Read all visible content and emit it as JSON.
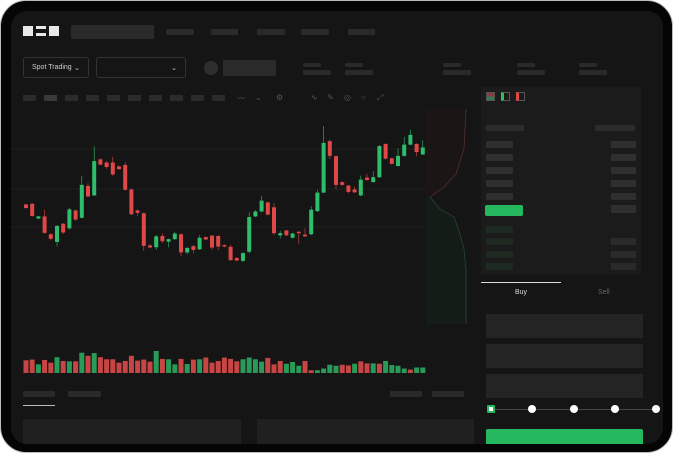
{
  "brand": {
    "logo_text": "OKX"
  },
  "toolbar": {
    "market_selector": "Spot Trading",
    "pair_selector": "",
    "chevron": "chevron-down-icon"
  },
  "trade": {
    "buy_tab": "Buy",
    "sell_tab": "Sell",
    "active_tab": "Buy",
    "slider_level_percent": 0,
    "slider_stops": [
      0,
      25,
      50,
      75,
      100
    ]
  },
  "colors": {
    "up": "#2ebd6b",
    "down": "#e04848",
    "accent": "#25b85f",
    "background": "#151515"
  },
  "candles": {
    "ylim": [
      80,
      480
    ],
    "ohlc": [
      [
        250,
        240,
        252,
        238
      ],
      [
        252,
        217,
        254,
        215
      ],
      [
        210,
        216,
        218,
        208
      ],
      [
        216,
        169,
        235,
        166
      ],
      [
        165,
        152,
        168,
        148
      ],
      [
        143,
        189,
        191,
        130
      ],
      [
        195,
        170,
        197,
        166
      ],
      [
        182,
        236,
        240,
        178
      ],
      [
        233,
        207,
        235,
        204
      ],
      [
        212,
        306,
        332,
        210
      ],
      [
        303,
        273,
        311,
        271
      ],
      [
        276,
        374,
        416,
        274
      ],
      [
        379,
        364,
        381,
        362
      ],
      [
        370,
        357,
        374,
        353
      ],
      [
        370,
        336,
        386,
        332
      ],
      [
        359,
        351,
        361,
        349
      ],
      [
        363,
        292,
        370,
        290
      ],
      [
        293,
        222,
        296,
        220
      ],
      [
        233,
        226,
        236,
        216
      ],
      [
        225,
        132,
        227,
        117
      ],
      [
        133,
        127,
        137,
        125
      ],
      [
        128,
        159,
        163,
        120
      ],
      [
        160,
        145,
        167,
        140
      ],
      [
        144,
        151,
        153,
        128
      ],
      [
        151,
        167,
        172,
        149
      ],
      [
        165,
        113,
        167,
        102
      ],
      [
        113,
        126,
        128,
        108
      ],
      [
        131,
        120,
        135,
        110
      ],
      [
        122,
        155,
        162,
        120
      ],
      [
        157,
        150,
        158,
        148
      ],
      [
        161,
        127,
        163,
        120
      ],
      [
        160,
        130,
        162,
        120
      ],
      [
        134,
        130,
        136,
        128
      ],
      [
        129,
        91,
        135,
        89
      ],
      [
        97,
        90,
        100,
        88
      ],
      [
        89,
        111,
        114,
        86
      ],
      [
        115,
        214,
        228,
        110
      ],
      [
        216,
        230,
        234,
        214
      ],
      [
        230,
        261,
        275,
        228
      ],
      [
        256,
        221,
        259,
        219
      ],
      [
        242,
        168,
        255,
        162
      ],
      [
        162,
        168,
        175,
        153
      ],
      [
        176,
        162,
        177,
        160
      ],
      [
        155,
        167,
        169,
        153
      ],
      [
        172,
        168,
        174,
        138
      ],
      [
        164,
        159,
        182,
        157
      ],
      [
        165,
        235,
        245,
        163
      ],
      [
        231,
        284,
        292,
        229
      ],
      [
        284,
        426,
        474,
        282
      ],
      [
        431,
        389,
        436,
        380
      ],
      [
        388,
        306,
        390,
        293
      ],
      [
        314,
        306,
        316,
        304
      ],
      [
        304,
        286,
        306,
        282
      ],
      [
        293,
        285,
        301,
        283
      ],
      [
        276,
        321,
        332,
        274
      ],
      [
        327,
        320,
        338,
        318
      ],
      [
        314,
        328,
        345,
        312
      ],
      [
        328,
        417,
        420,
        326
      ],
      [
        423,
        381,
        425,
        378
      ],
      [
        382,
        366,
        384,
        364
      ],
      [
        360,
        389,
        410,
        358
      ],
      [
        389,
        421,
        443,
        387
      ],
      [
        421,
        449,
        464,
        419
      ],
      [
        423,
        400,
        425,
        388
      ],
      [
        393,
        413,
        434,
        391
      ]
    ],
    "volume": [
      37,
      39,
      25,
      38,
      30,
      46,
      35,
      34,
      34,
      59,
      50,
      58,
      46,
      40,
      40,
      30,
      35,
      50,
      36,
      39,
      33,
      64,
      41,
      40,
      25,
      41,
      26,
      39,
      40,
      45,
      30,
      35,
      45,
      41,
      34,
      40,
      45,
      40,
      33,
      44,
      25,
      35,
      27,
      32,
      21,
      35,
      8,
      8,
      13,
      24,
      21,
      24,
      22,
      27,
      34,
      28,
      28,
      27,
      35,
      23,
      21,
      13,
      10,
      16,
      16
    ],
    "volume_up": [
      0,
      0,
      1,
      0,
      0,
      1,
      0,
      1,
      0,
      1,
      0,
      1,
      0,
      0,
      0,
      0,
      0,
      0,
      0,
      0,
      0,
      1,
      0,
      1,
      1,
      0,
      1,
      0,
      1,
      0,
      0,
      0,
      0,
      0,
      0,
      1,
      1,
      1,
      1,
      0,
      0,
      0,
      1,
      1,
      1,
      0,
      0,
      1,
      1,
      1,
      1,
      0,
      0,
      1,
      0,
      0,
      1,
      0,
      1,
      1,
      1,
      1,
      0,
      1,
      1
    ]
  }
}
